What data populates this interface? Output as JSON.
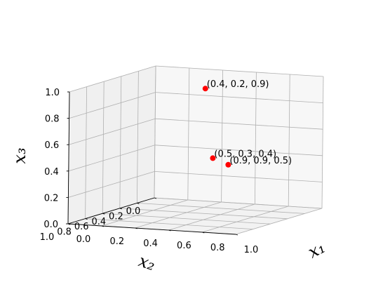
{
  "chart_data": {
    "type": "scatter",
    "title": "",
    "xlabel": "x1",
    "ylabel": "x2",
    "zlabel": "x3",
    "axis_label_display": {
      "x": "x₁",
      "y": "x₂",
      "z": "x₃"
    },
    "xlim": [
      0,
      1
    ],
    "ylim": [
      0,
      1
    ],
    "zlim": [
      0,
      1
    ],
    "xticks": [
      "0.0",
      "0.2",
      "0.4",
      "0.6",
      "0.8",
      "1.0"
    ],
    "yticks": [
      "0.0",
      "0.2",
      "0.4",
      "0.6",
      "0.8",
      "1.0"
    ],
    "zticks": [
      "0.0",
      "0.2",
      "0.4",
      "0.6",
      "0.8",
      "1.0"
    ],
    "grid": true,
    "marker_color": "#ff0000",
    "points": [
      {
        "x": 0.4,
        "y": 0.2,
        "z": 0.9,
        "label": "(0.4, 0.2, 0.9)"
      },
      {
        "x": 0.5,
        "y": 0.3,
        "z": 0.4,
        "label": "(0.5, 0.3, 0.4)"
      },
      {
        "x": 0.9,
        "y": 0.9,
        "z": 0.5,
        "label": "(0.9, 0.9, 0.5)"
      }
    ]
  }
}
